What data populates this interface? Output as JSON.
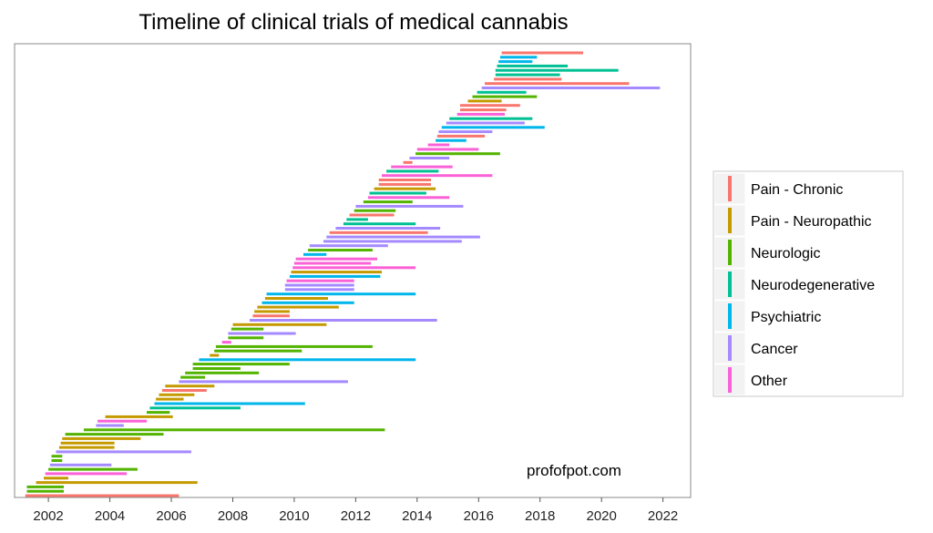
{
  "chart_data": {
    "type": "timeline",
    "title": "Timeline of clinical trials of medical cannabis",
    "watermark": "profofpot.com",
    "xlabel": "",
    "ylabel": "",
    "xlim": [
      2000.9,
      2022.9
    ],
    "x_ticks": [
      2002,
      2004,
      2006,
      2008,
      2010,
      2012,
      2014,
      2016,
      2018,
      2020,
      2022
    ],
    "x_tick_labels": [
      "2002",
      "2004",
      "2006",
      "2008",
      "2010",
      "2012",
      "2014",
      "2016",
      "2018",
      "2020",
      "2022"
    ],
    "grid": false,
    "legend_position": "right",
    "categories": [
      {
        "key": "pain-chronic",
        "name": "Pain - Chronic",
        "color": "#F8766D"
      },
      {
        "key": "pain-neuropathic",
        "name": "Pain - Neuropathic",
        "color": "#C49A00"
      },
      {
        "key": "neurologic",
        "name": "Neurologic",
        "color": "#53B400"
      },
      {
        "key": "neurodegenerative",
        "name": "Neurodegenerative",
        "color": "#00C094"
      },
      {
        "key": "psychiatric",
        "name": "Psychiatric",
        "color": "#00B6EB"
      },
      {
        "key": "cancer",
        "name": "Cancer",
        "color": "#A58AFF"
      },
      {
        "key": "other",
        "name": "Other",
        "color": "#FB61D7"
      }
    ],
    "trials": [
      {
        "start": 2001.25,
        "end": 2006.25,
        "category": "pain-chronic"
      },
      {
        "start": 2001.3,
        "end": 2002.5,
        "category": "neurologic"
      },
      {
        "start": 2001.3,
        "end": 2002.5,
        "category": "neurologic"
      },
      {
        "start": 2001.6,
        "end": 2006.85,
        "category": "pain-neuropathic"
      },
      {
        "start": 2001.85,
        "end": 2002.65,
        "category": "pain-neuropathic"
      },
      {
        "start": 2001.9,
        "end": 2004.55,
        "category": "other"
      },
      {
        "start": 2002.0,
        "end": 2004.9,
        "category": "neurologic"
      },
      {
        "start": 2002.05,
        "end": 2004.05,
        "category": "cancer"
      },
      {
        "start": 2002.1,
        "end": 2002.45,
        "category": "neurologic"
      },
      {
        "start": 2002.1,
        "end": 2002.45,
        "category": "neurologic"
      },
      {
        "start": 2002.25,
        "end": 2006.65,
        "category": "cancer"
      },
      {
        "start": 2002.35,
        "end": 2004.15,
        "category": "pain-neuropathic"
      },
      {
        "start": 2002.4,
        "end": 2004.15,
        "category": "pain-neuropathic"
      },
      {
        "start": 2002.45,
        "end": 2005.0,
        "category": "pain-neuropathic"
      },
      {
        "start": 2002.55,
        "end": 2005.75,
        "category": "neurologic"
      },
      {
        "start": 2003.15,
        "end": 2012.95,
        "category": "neurologic"
      },
      {
        "start": 2003.55,
        "end": 2004.45,
        "category": "cancer"
      },
      {
        "start": 2003.6,
        "end": 2005.2,
        "category": "other"
      },
      {
        "start": 2003.85,
        "end": 2006.05,
        "category": "pain-neuropathic"
      },
      {
        "start": 2005.2,
        "end": 2005.95,
        "category": "neurologic"
      },
      {
        "start": 2005.3,
        "end": 2008.25,
        "category": "neurodegenerative"
      },
      {
        "start": 2005.45,
        "end": 2010.35,
        "category": "psychiatric"
      },
      {
        "start": 2005.5,
        "end": 2006.4,
        "category": "pain-neuropathic"
      },
      {
        "start": 2005.6,
        "end": 2006.75,
        "category": "pain-neuropathic"
      },
      {
        "start": 2005.7,
        "end": 2007.15,
        "category": "pain-chronic"
      },
      {
        "start": 2005.8,
        "end": 2007.4,
        "category": "pain-neuropathic"
      },
      {
        "start": 2006.25,
        "end": 2011.75,
        "category": "cancer"
      },
      {
        "start": 2006.3,
        "end": 2007.1,
        "category": "neurologic"
      },
      {
        "start": 2006.45,
        "end": 2008.85,
        "category": "neurologic"
      },
      {
        "start": 2006.7,
        "end": 2008.25,
        "category": "neurologic"
      },
      {
        "start": 2006.7,
        "end": 2009.85,
        "category": "neurologic"
      },
      {
        "start": 2006.9,
        "end": 2013.95,
        "category": "psychiatric"
      },
      {
        "start": 2007.25,
        "end": 2007.55,
        "category": "pain-neuropathic"
      },
      {
        "start": 2007.4,
        "end": 2010.25,
        "category": "neurologic"
      },
      {
        "start": 2007.45,
        "end": 2012.55,
        "category": "neurologic"
      },
      {
        "start": 2007.65,
        "end": 2007.95,
        "category": "other"
      },
      {
        "start": 2007.85,
        "end": 2009.0,
        "category": "neurologic"
      },
      {
        "start": 2007.85,
        "end": 2010.05,
        "category": "cancer"
      },
      {
        "start": 2007.95,
        "end": 2009.0,
        "category": "neurologic"
      },
      {
        "start": 2008.0,
        "end": 2011.05,
        "category": "pain-neuropathic"
      },
      {
        "start": 2008.55,
        "end": 2014.65,
        "category": "cancer"
      },
      {
        "start": 2008.65,
        "end": 2009.85,
        "category": "pain-chronic"
      },
      {
        "start": 2008.7,
        "end": 2009.85,
        "category": "pain-neuropathic"
      },
      {
        "start": 2008.8,
        "end": 2011.45,
        "category": "pain-neuropathic"
      },
      {
        "start": 2008.95,
        "end": 2011.95,
        "category": "psychiatric"
      },
      {
        "start": 2009.05,
        "end": 2011.1,
        "category": "pain-neuropathic"
      },
      {
        "start": 2009.1,
        "end": 2013.95,
        "category": "psychiatric"
      },
      {
        "start": 2009.7,
        "end": 2011.95,
        "category": "cancer"
      },
      {
        "start": 2009.7,
        "end": 2011.95,
        "category": "cancer"
      },
      {
        "start": 2009.75,
        "end": 2011.95,
        "category": "other"
      },
      {
        "start": 2009.85,
        "end": 2012.8,
        "category": "psychiatric"
      },
      {
        "start": 2009.9,
        "end": 2012.85,
        "category": "pain-neuropathic"
      },
      {
        "start": 2009.95,
        "end": 2013.95,
        "category": "other"
      },
      {
        "start": 2010.0,
        "end": 2012.5,
        "category": "other"
      },
      {
        "start": 2010.05,
        "end": 2012.7,
        "category": "other"
      },
      {
        "start": 2010.3,
        "end": 2011.05,
        "category": "psychiatric"
      },
      {
        "start": 2010.45,
        "end": 2012.55,
        "category": "neurologic"
      },
      {
        "start": 2010.5,
        "end": 2013.05,
        "category": "cancer"
      },
      {
        "start": 2010.95,
        "end": 2015.45,
        "category": "cancer"
      },
      {
        "start": 2011.05,
        "end": 2016.05,
        "category": "cancer"
      },
      {
        "start": 2011.15,
        "end": 2014.35,
        "category": "pain-chronic"
      },
      {
        "start": 2011.35,
        "end": 2014.75,
        "category": "cancer"
      },
      {
        "start": 2011.6,
        "end": 2013.95,
        "category": "neurodegenerative"
      },
      {
        "start": 2011.7,
        "end": 2012.4,
        "category": "neurodegenerative"
      },
      {
        "start": 2011.8,
        "end": 2013.25,
        "category": "pain-chronic"
      },
      {
        "start": 2011.95,
        "end": 2013.3,
        "category": "neurologic"
      },
      {
        "start": 2012.0,
        "end": 2015.5,
        "category": "cancer"
      },
      {
        "start": 2012.25,
        "end": 2013.85,
        "category": "neurologic"
      },
      {
        "start": 2012.4,
        "end": 2015.05,
        "category": "other"
      },
      {
        "start": 2012.45,
        "end": 2014.3,
        "category": "neurodegenerative"
      },
      {
        "start": 2012.6,
        "end": 2014.6,
        "category": "pain-neuropathic"
      },
      {
        "start": 2012.75,
        "end": 2014.45,
        "category": "pain-chronic"
      },
      {
        "start": 2012.75,
        "end": 2014.45,
        "category": "pain-chronic"
      },
      {
        "start": 2012.85,
        "end": 2016.45,
        "category": "other"
      },
      {
        "start": 2013.0,
        "end": 2014.7,
        "category": "neurodegenerative"
      },
      {
        "start": 2013.15,
        "end": 2015.15,
        "category": "other"
      },
      {
        "start": 2013.55,
        "end": 2013.85,
        "category": "pain-chronic"
      },
      {
        "start": 2013.75,
        "end": 2015.05,
        "category": "cancer"
      },
      {
        "start": 2013.95,
        "end": 2016.7,
        "category": "neurologic"
      },
      {
        "start": 2014.0,
        "end": 2016.0,
        "category": "other"
      },
      {
        "start": 2014.35,
        "end": 2015.05,
        "category": "other"
      },
      {
        "start": 2014.6,
        "end": 2015.6,
        "category": "psychiatric"
      },
      {
        "start": 2014.65,
        "end": 2016.2,
        "category": "pain-chronic"
      },
      {
        "start": 2014.7,
        "end": 2016.45,
        "category": "cancer"
      },
      {
        "start": 2014.8,
        "end": 2018.15,
        "category": "psychiatric"
      },
      {
        "start": 2014.95,
        "end": 2017.5,
        "category": "cancer"
      },
      {
        "start": 2015.05,
        "end": 2017.75,
        "category": "neurodegenerative"
      },
      {
        "start": 2015.3,
        "end": 2016.85,
        "category": "other"
      },
      {
        "start": 2015.4,
        "end": 2016.9,
        "category": "pain-chronic"
      },
      {
        "start": 2015.4,
        "end": 2017.35,
        "category": "pain-chronic"
      },
      {
        "start": 2015.65,
        "end": 2016.75,
        "category": "pain-neuropathic"
      },
      {
        "start": 2015.8,
        "end": 2017.9,
        "category": "neurologic"
      },
      {
        "start": 2015.95,
        "end": 2017.55,
        "category": "neurodegenerative"
      },
      {
        "start": 2016.1,
        "end": 2021.9,
        "category": "cancer"
      },
      {
        "start": 2016.2,
        "end": 2020.9,
        "category": "pain-chronic"
      },
      {
        "start": 2016.5,
        "end": 2018.7,
        "category": "pain-chronic"
      },
      {
        "start": 2016.55,
        "end": 2018.65,
        "category": "neurodegenerative"
      },
      {
        "start": 2016.55,
        "end": 2020.55,
        "category": "neurodegenerative"
      },
      {
        "start": 2016.6,
        "end": 2018.9,
        "category": "neurodegenerative"
      },
      {
        "start": 2016.65,
        "end": 2017.75,
        "category": "psychiatric"
      },
      {
        "start": 2016.7,
        "end": 2017.9,
        "category": "psychiatric"
      },
      {
        "start": 2016.75,
        "end": 2019.4,
        "category": "pain-chronic"
      }
    ]
  }
}
